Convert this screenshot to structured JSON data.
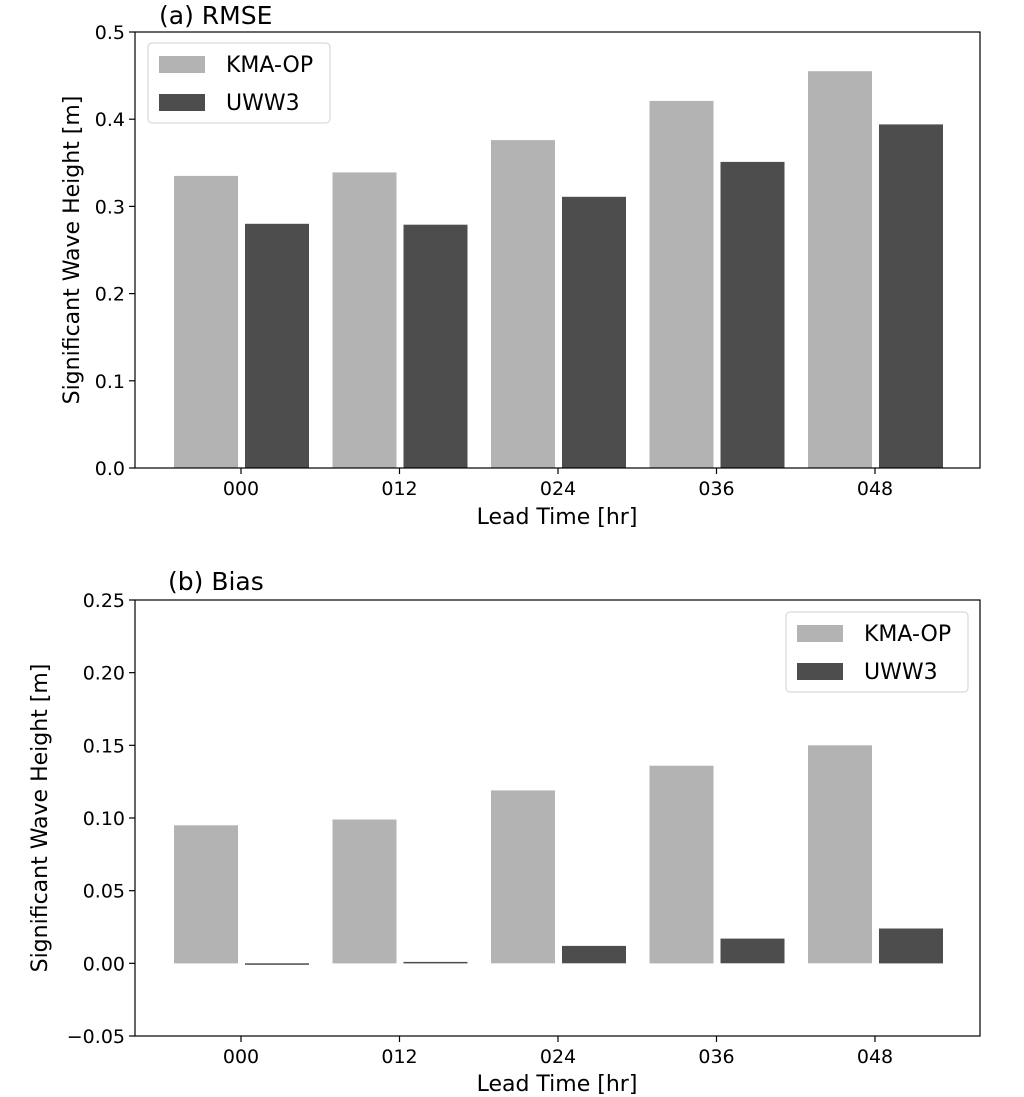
{
  "chart_data": [
    {
      "type": "bar",
      "title": "(a) RMSE",
      "xlabel": "Lead Time [hr]",
      "ylabel": "Significant Wave Height [m]",
      "categories": [
        "000",
        "012",
        "024",
        "036",
        "048"
      ],
      "series": [
        {
          "name": "KMA-OP",
          "color": "#b3b3b3",
          "values": [
            0.335,
            0.339,
            0.376,
            0.421,
            0.455
          ]
        },
        {
          "name": "UWW3",
          "color": "#4d4d4d",
          "values": [
            0.28,
            0.279,
            0.311,
            0.351,
            0.394
          ]
        }
      ],
      "ylim": [
        0.0,
        0.5
      ],
      "yticks": [
        "0.0",
        "0.1",
        "0.2",
        "0.3",
        "0.4",
        "0.5"
      ],
      "legend_position": "top-left",
      "grid": false
    },
    {
      "type": "bar",
      "title": "(b) Bias",
      "xlabel": "Lead Time [hr]",
      "ylabel": "Significant Wave Height [m]",
      "categories": [
        "000",
        "012",
        "024",
        "036",
        "048"
      ],
      "series": [
        {
          "name": "KMA-OP",
          "color": "#b3b3b3",
          "values": [
            0.095,
            0.099,
            0.119,
            0.136,
            0.15
          ]
        },
        {
          "name": "UWW3",
          "color": "#4d4d4d",
          "values": [
            -0.001,
            0.001,
            0.012,
            0.017,
            0.024
          ]
        }
      ],
      "ylim": [
        -0.05,
        0.25
      ],
      "yticks": [
        "−0.05",
        "0.00",
        "0.05",
        "0.10",
        "0.15",
        "0.20",
        "0.25"
      ],
      "legend_position": "top-right",
      "grid": false
    }
  ]
}
